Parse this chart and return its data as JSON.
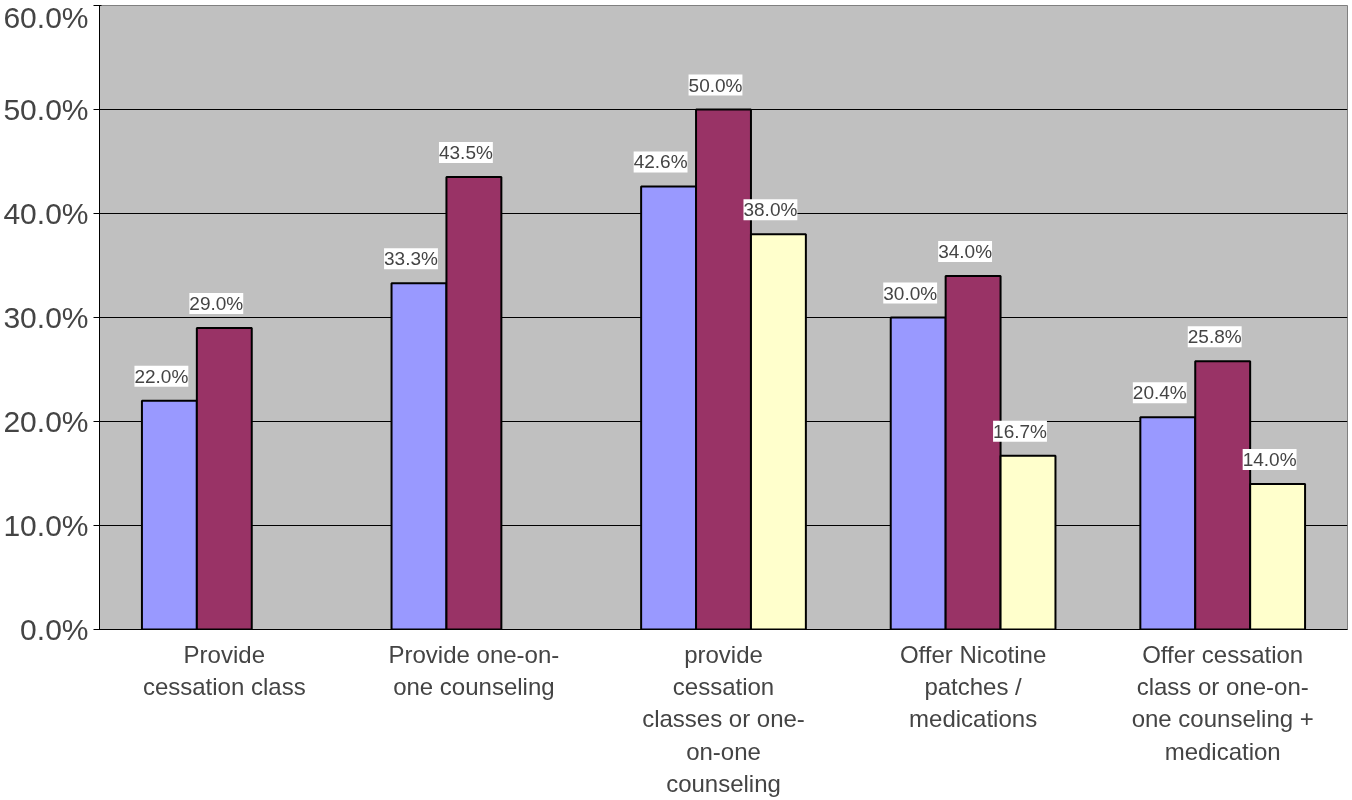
{
  "chart_data": {
    "type": "bar",
    "categories": [
      "Provide cessation class",
      "Provide one-on-one counseling",
      "provide cessation classes or one-on-one counseling",
      "Offer Nicotine patches / medications",
      "Offer cessation class or one-on-one counseling + medication"
    ],
    "series": [
      {
        "color": "#9999ff",
        "values": [
          22.0,
          33.3,
          42.6,
          30.0,
          20.4
        ],
        "value_labels": [
          "22.0%",
          "33.3%",
          "42.6%",
          "30.0%",
          "20.4%"
        ]
      },
      {
        "color": "#993366",
        "values": [
          29.0,
          43.5,
          50.0,
          34.0,
          25.8
        ],
        "value_labels": [
          "29.0%",
          "43.5%",
          "50.0%",
          "34.0%",
          "25.8%"
        ]
      },
      {
        "color": "#ffffcc",
        "values": [
          null,
          null,
          38.0,
          16.7,
          14.0
        ],
        "value_labels": [
          null,
          null,
          "38.0%",
          "16.7%",
          "14.0%"
        ]
      }
    ],
    "ylim": [
      0,
      60
    ],
    "yticks": [
      {
        "value": 0,
        "label": "0.0%"
      },
      {
        "value": 10,
        "label": "10.0%"
      },
      {
        "value": 20,
        "label": "20.0%"
      },
      {
        "value": 30,
        "label": "30.0%"
      },
      {
        "value": 40,
        "label": "40.0%"
      },
      {
        "value": 50,
        "label": "50.0%"
      },
      {
        "value": 60,
        "label": "60.0%"
      }
    ],
    "grid": "y"
  }
}
